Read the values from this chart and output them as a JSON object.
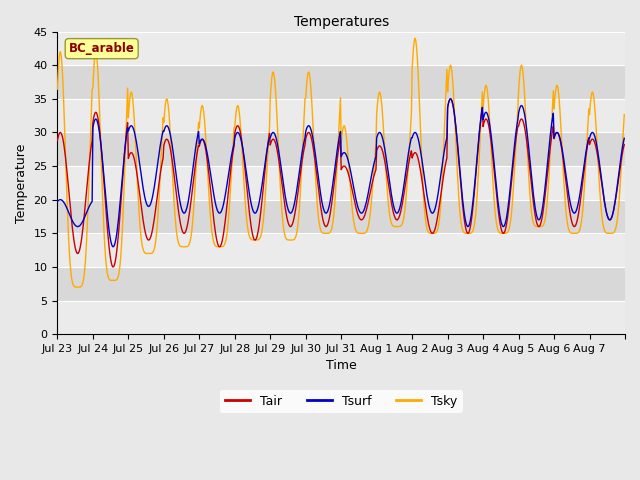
{
  "title": "Temperatures",
  "xlabel": "Time",
  "ylabel": "Temperature",
  "ylim": [
    0,
    45
  ],
  "yticks": [
    0,
    5,
    10,
    15,
    20,
    25,
    30,
    35,
    40,
    45
  ],
  "xlabels": [
    "Jul 23",
    "Jul 24",
    "Jul 25",
    "Jul 26",
    "Jul 27",
    "Jul 28",
    "Jul 29",
    "Jul 30",
    "Jul 31",
    "Aug 1",
    "Aug 2",
    "Aug 3",
    "Aug 4",
    "Aug 5",
    "Aug 6",
    "Aug 7"
  ],
  "legend_labels": [
    "Tair",
    "Tsurf",
    "Tsky"
  ],
  "legend_colors": [
    "#cc0000",
    "#0000cc",
    "#ffaa00"
  ],
  "site_label": "BC_arable",
  "site_label_color": "#8b0000",
  "site_box_facecolor": "#ffff99",
  "site_box_edgecolor": "#999933",
  "fig_facecolor": "#e8e8e8",
  "plot_facecolor": "#e8e8e8",
  "tair_color": "#cc0000",
  "tsurf_color": "#0000cc",
  "tsky_color": "#ffaa00",
  "line_width": 1.0,
  "n_days": 16,
  "n_per_day": 48,
  "tair_peaks": [
    30,
    33,
    27,
    29,
    29,
    31,
    29,
    30,
    25,
    28,
    27,
    35,
    32,
    32,
    30,
    29
  ],
  "tair_troughs": [
    12,
    10,
    14,
    15,
    13,
    14,
    16,
    16,
    17,
    17,
    15,
    15,
    15,
    16,
    16,
    17
  ],
  "tsurf_peaks": [
    20,
    32,
    31,
    31,
    29,
    30,
    30,
    31,
    27,
    30,
    30,
    35,
    33,
    34,
    30,
    30
  ],
  "tsurf_troughs": [
    16,
    13,
    19,
    18,
    18,
    18,
    18,
    18,
    18,
    18,
    18,
    16,
    16,
    17,
    18,
    17
  ],
  "tsky_peaks": [
    42,
    42,
    36,
    35,
    34,
    34,
    39,
    39,
    31,
    36,
    44,
    40,
    37,
    40,
    37,
    36
  ],
  "tsky_troughs": [
    7,
    8,
    12,
    13,
    13,
    14,
    14,
    15,
    15,
    16,
    15,
    15,
    15,
    16,
    15,
    15
  ],
  "band_colors": [
    "#ebebeb",
    "#d8d8d8"
  ],
  "grid_color": "#ffffff"
}
